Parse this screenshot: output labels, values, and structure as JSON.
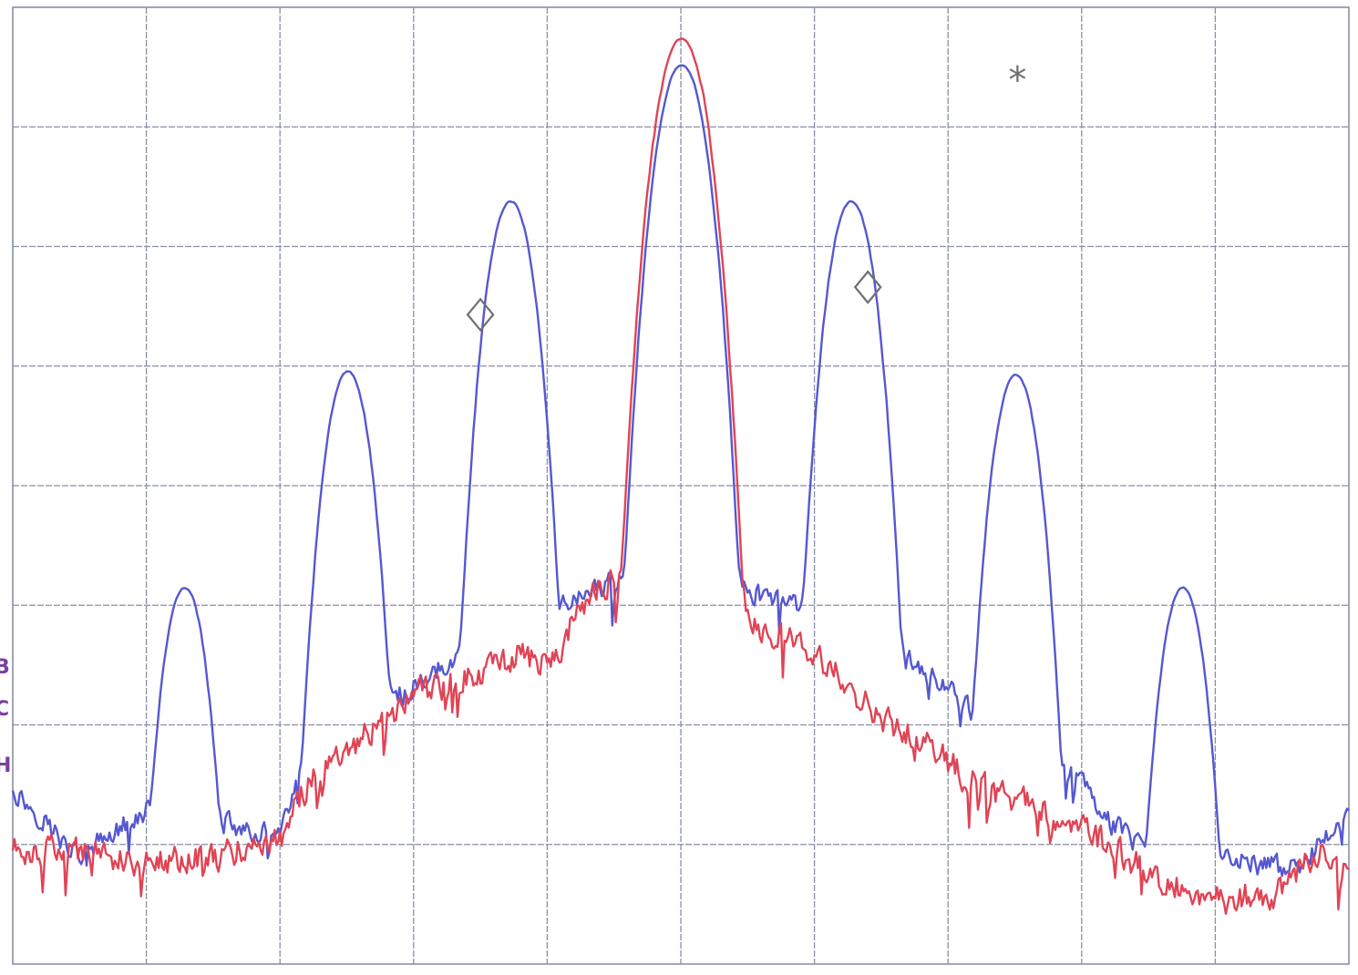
{
  "chart_data": {
    "type": "line",
    "title": "",
    "xlabel": "",
    "ylabel": "",
    "xlim": [
      0,
      10
    ],
    "ylim": [
      0,
      8
    ],
    "grid": true,
    "grid_divisions": {
      "x": 10,
      "y": 8
    },
    "colors": {
      "grid": "#8a8fa6",
      "background": "#ffffff",
      "series_blue": "#5558d0",
      "series_red": "#e04455",
      "marker": "#707070",
      "side_text": "#7a3fa0"
    },
    "markers": [
      {
        "shape": "diamond",
        "x": 3.5,
        "y": 5.43,
        "label": ""
      },
      {
        "shape": "diamond",
        "x": 6.4,
        "y": 5.66,
        "label": ""
      },
      {
        "shape": "asterisk",
        "x": 7.52,
        "y": 7.37,
        "label": "*"
      }
    ],
    "side_text": [
      "B",
      "C",
      "H"
    ],
    "series": [
      {
        "color": "#5558d0",
        "noise": 0.13,
        "peaks": [
          {
            "x": 1.28,
            "y": 3.15,
            "w": 0.26
          },
          {
            "x": 2.5,
            "y": 4.96,
            "w": 0.27
          },
          {
            "x": 3.72,
            "y": 6.38,
            "w": 0.28
          },
          {
            "x": 5.0,
            "y": 7.52,
            "w": 0.3
          },
          {
            "x": 6.27,
            "y": 6.38,
            "w": 0.28
          },
          {
            "x": 7.5,
            "y": 4.93,
            "w": 0.27
          },
          {
            "x": 8.75,
            "y": 3.15,
            "w": 0.26
          }
        ],
        "floor": [
          [
            0.0,
            1.45
          ],
          [
            0.5,
            0.9
          ],
          [
            1.0,
            1.3
          ],
          [
            1.5,
            1.2
          ],
          [
            2.0,
            1.05
          ],
          [
            2.2,
            1.9
          ],
          [
            2.9,
            2.25
          ],
          [
            3.3,
            2.55
          ],
          [
            3.9,
            2.9
          ],
          [
            4.4,
            3.15
          ],
          [
            4.9,
            3.5
          ],
          [
            5.0,
            3.6
          ],
          [
            5.5,
            3.1
          ],
          [
            6.0,
            2.95
          ],
          [
            6.6,
            2.6
          ],
          [
            7.0,
            2.3
          ],
          [
            7.3,
            1.95
          ],
          [
            8.0,
            1.55
          ],
          [
            8.2,
            1.2
          ],
          [
            8.5,
            0.9
          ],
          [
            9.2,
            0.85
          ],
          [
            9.6,
            0.8
          ],
          [
            10.0,
            1.25
          ]
        ]
      },
      {
        "color": "#e04455",
        "noise": 0.17,
        "peaks": [
          {
            "x": 5.0,
            "y": 7.74,
            "w": 0.31
          }
        ],
        "floor": [
          [
            0.0,
            0.95
          ],
          [
            0.5,
            0.95
          ],
          [
            1.0,
            0.85
          ],
          [
            1.5,
            0.9
          ],
          [
            2.0,
            1.05
          ],
          [
            2.2,
            1.5
          ],
          [
            2.6,
            1.9
          ],
          [
            3.0,
            2.25
          ],
          [
            3.4,
            2.4
          ],
          [
            3.8,
            2.6
          ],
          [
            4.0,
            2.5
          ],
          [
            4.3,
            3.05
          ],
          [
            4.6,
            3.35
          ],
          [
            4.9,
            3.55
          ],
          [
            5.0,
            3.65
          ],
          [
            5.3,
            3.3
          ],
          [
            5.6,
            2.8
          ],
          [
            6.0,
            2.6
          ],
          [
            6.4,
            2.15
          ],
          [
            6.8,
            1.85
          ],
          [
            7.2,
            1.5
          ],
          [
            7.6,
            1.35
          ],
          [
            7.8,
            1.2
          ],
          [
            8.0,
            1.15
          ],
          [
            8.5,
            0.75
          ],
          [
            9.0,
            0.55
          ],
          [
            9.5,
            0.6
          ],
          [
            9.75,
            0.95
          ],
          [
            10.0,
            0.9
          ]
        ]
      }
    ]
  }
}
